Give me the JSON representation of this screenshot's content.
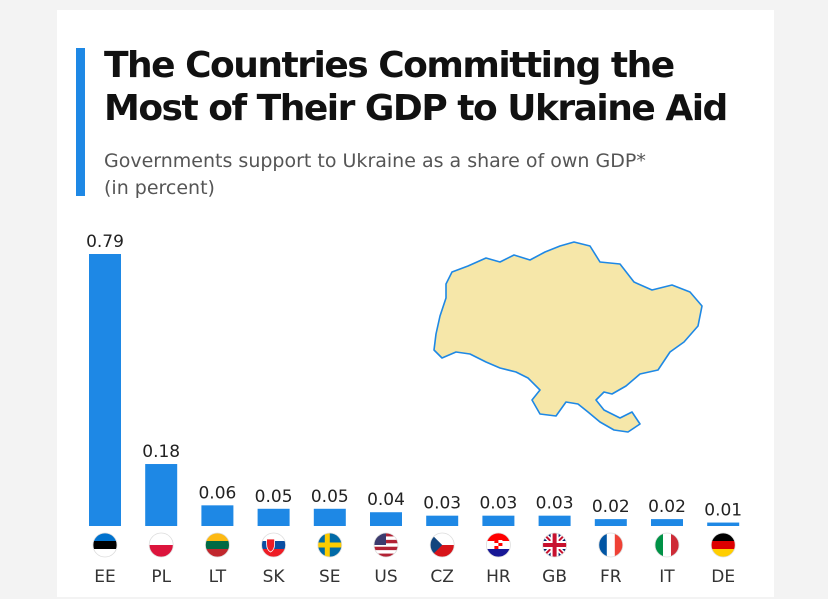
{
  "header": {
    "title_line1": "The Countries Committing the",
    "title_line2": "Most of Their GDP to Ukraine Aid",
    "subtitle_line1": "Governments support to Ukraine as a share of own GDP*",
    "subtitle_line2": "(in percent)"
  },
  "colors": {
    "accent": "#1e88e5",
    "bar": "#1e88e5",
    "map_fill": "#f6e7a9",
    "map_stroke": "#1e88e5"
  },
  "chart_data": {
    "type": "bar",
    "title": "The Countries Committing the Most of Their GDP to Ukraine Aid",
    "subtitle": "Governments support to Ukraine as a share of own GDP* (in percent)",
    "xlabel": "",
    "ylabel": "",
    "ylim": [
      0,
      0.79
    ],
    "grid": false,
    "categories": [
      "EE",
      "PL",
      "LT",
      "SK",
      "SE",
      "US",
      "CZ",
      "HR",
      "GB",
      "FR",
      "IT",
      "DE"
    ],
    "values": [
      0.79,
      0.18,
      0.06,
      0.05,
      0.05,
      0.04,
      0.03,
      0.03,
      0.03,
      0.02,
      0.02,
      0.01
    ],
    "value_labels": [
      "0.79",
      "0.18",
      "0.06",
      "0.05",
      "0.05",
      "0.04",
      "0.03",
      "0.03",
      "0.03",
      "0.02",
      "0.02",
      "0.01"
    ],
    "flags": [
      "estonia-flag-icon",
      "poland-flag-icon",
      "lithuania-flag-icon",
      "slovakia-flag-icon",
      "sweden-flag-icon",
      "usa-flag-icon",
      "czechia-flag-icon",
      "croatia-flag-icon",
      "uk-flag-icon",
      "france-flag-icon",
      "italy-flag-icon",
      "germany-flag-icon"
    ]
  }
}
